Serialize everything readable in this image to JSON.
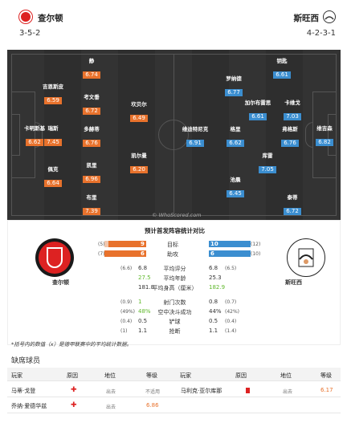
{
  "header": {
    "home": {
      "name": "查尔顿",
      "formation": "3-5-2"
    },
    "away": {
      "name": "斯旺西",
      "formation": "4-2-3-1"
    }
  },
  "pitch": {
    "watermark": "© WhoScored.com",
    "home_players": [
      {
        "name": "卡明斯基",
        "rating": "6.62"
      },
      {
        "name": "吉恩斯皮",
        "rating": "6.59"
      },
      {
        "name": "瑞斯",
        "rating": "7.45"
      },
      {
        "name": "佩克",
        "rating": "6.64"
      },
      {
        "name": "静",
        "rating": "6.74"
      },
      {
        "name": "考文垂",
        "rating": "6.72"
      },
      {
        "name": "多赫蒂",
        "rating": "6.76"
      },
      {
        "name": "凯里",
        "rating": "6.96"
      },
      {
        "name": "布里",
        "rating": "7.39"
      },
      {
        "name": "坎贝尔",
        "rating": "6.49"
      },
      {
        "name": "凯尔曼",
        "rating": "6.20"
      }
    ],
    "away_players": [
      {
        "name": "钥匙",
        "rating": "6.61"
      },
      {
        "name": "罗纳德",
        "rating": "6.77"
      },
      {
        "name": "加尔布雷思",
        "rating": "6.61"
      },
      {
        "name": "卡维戈",
        "rating": "7.03"
      },
      {
        "name": "维迪特尼克",
        "rating": "6.91"
      },
      {
        "name": "格里",
        "rating": "6.62"
      },
      {
        "name": "弗格斯",
        "rating": "6.76"
      },
      {
        "name": "库雷",
        "rating": "7.05"
      },
      {
        "name": "池晨",
        "rating": "6.45"
      },
      {
        "name": "泰蒂",
        "rating": "6.72"
      },
      {
        "name": "维吉森",
        "rating": "6.82"
      }
    ]
  },
  "stats": {
    "title": "预计首发阵容统计对比",
    "home_label": "查尔顿",
    "away_label": "斯旺西",
    "goals": {
      "label": "目标",
      "home_avg": "(5)",
      "home": "9",
      "away": "10",
      "away_avg": "(12)"
    },
    "assists": {
      "label": "助攻",
      "home_avg": "(7)",
      "home": "6",
      "away": "6",
      "away_avg": "(10)"
    },
    "rows": [
      {
        "label": "平均评分",
        "home_avg": "(6.6)",
        "home": "6.8",
        "away": "6.8",
        "away_avg": "(6.5)",
        "hl": "none"
      },
      {
        "label": "平均年龄",
        "home_avg": "",
        "home": "27.5",
        "away": "25.3",
        "away_avg": "",
        "hl": "home"
      },
      {
        "label": "平均身高（厘米）",
        "home_avg": "",
        "home": "181.8",
        "away": "182.9",
        "away_avg": "",
        "hl": "away"
      },
      {
        "label": "射门次数",
        "home_avg": "(0.9)",
        "home": "1",
        "away": "0.8",
        "away_avg": "(0.7)",
        "hl": "home"
      },
      {
        "label": "空中决斗成功",
        "home_avg": "(49%)",
        "home": "48%",
        "away": "44%",
        "away_avg": "(42%)",
        "hl": "home"
      },
      {
        "label": "铲球",
        "home_avg": "(0.4)",
        "home": "0.5",
        "away": "0.5",
        "away_avg": "(0.4)",
        "hl": "none"
      },
      {
        "label": "抢断",
        "home_avg": "(1)",
        "home": "1.1",
        "away": "1.1",
        "away_avg": "(1.4)",
        "hl": "none"
      }
    ],
    "footnote": "*括号内的数值（x）是德甲联赛中的平均统计数据。"
  },
  "absent": {
    "title": "缺席球员",
    "headers": {
      "player": "玩家",
      "reason": "原因",
      "status": "地位",
      "grade": "等级"
    },
    "left": [
      {
        "player": "马蒂·戈登",
        "reason": "injury",
        "status": "出去",
        "grade": "不适用",
        "grade_is_na": true
      },
      {
        "player": "乔纳·爱德华兹",
        "reason": "injury",
        "status": "出去",
        "grade": "6.86",
        "grade_is_na": false
      }
    ],
    "right": [
      {
        "player": "马利克·亚尔库那",
        "reason": "red-card",
        "status": "出去",
        "grade": "6.17",
        "grade_is_na": false
      }
    ]
  },
  "colors": {
    "home": "#e8722c",
    "away": "#3b8ed0",
    "highlight": "#5fb82b"
  }
}
